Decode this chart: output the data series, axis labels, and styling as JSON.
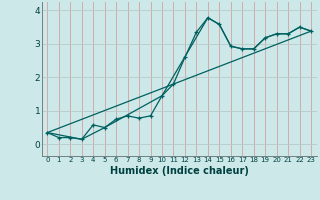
{
  "title": "",
  "xlabel": "Humidex (Indice chaleur)",
  "background_color": "#cce8e8",
  "grid_color_v": "#d4a0a0",
  "grid_color_h": "#b8c8c8",
  "line_color": "#006060",
  "xlim": [
    -0.5,
    23.5
  ],
  "ylim": [
    -0.35,
    4.25
  ],
  "xtick_labels": [
    "0",
    "1",
    "2",
    "3",
    "4",
    "5",
    "6",
    "7",
    "8",
    "9",
    "10",
    "11",
    "12",
    "13",
    "14",
    "15",
    "16",
    "17",
    "18",
    "19",
    "20",
    "21",
    "22",
    "23"
  ],
  "ytick_values": [
    0,
    1,
    2,
    3,
    4
  ],
  "line1_x": [
    0,
    1,
    2,
    3,
    4,
    5,
    6,
    7,
    8,
    9,
    10,
    11,
    12,
    13,
    14,
    15,
    16,
    17,
    18,
    19,
    20,
    21,
    22,
    23
  ],
  "line1_y": [
    0.35,
    0.2,
    0.2,
    0.15,
    0.58,
    0.5,
    0.75,
    0.85,
    0.78,
    0.85,
    1.45,
    1.8,
    2.6,
    3.35,
    3.78,
    3.58,
    2.93,
    2.85,
    2.85,
    3.18,
    3.3,
    3.3,
    3.5,
    3.38
  ],
  "line2_x": [
    0,
    3,
    5,
    10,
    14,
    15,
    16,
    17,
    18,
    19,
    20,
    21,
    22,
    23
  ],
  "line2_y": [
    0.35,
    0.15,
    0.5,
    1.45,
    3.78,
    3.58,
    2.93,
    2.85,
    2.85,
    3.18,
    3.3,
    3.3,
    3.5,
    3.38
  ],
  "line3_x": [
    0,
    23
  ],
  "line3_y": [
    0.35,
    3.38
  ]
}
